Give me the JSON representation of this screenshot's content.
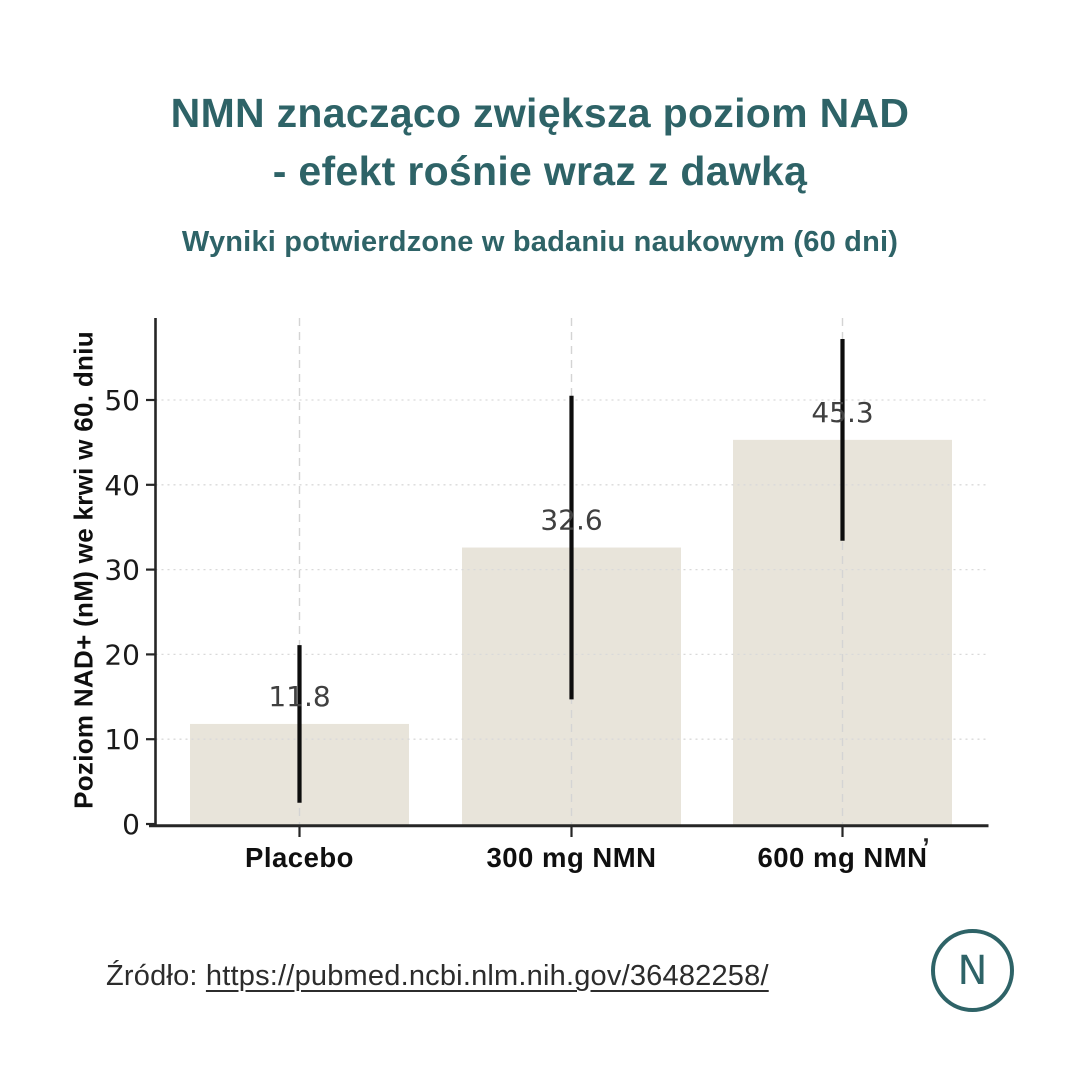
{
  "header": {
    "title_lines": [
      "NMN znacząco zwiększa poziom NAD",
      "- efekt rośnie wraz z dawką"
    ],
    "subtitle": "Wyniki potwierdzone w badaniu naukowym (60 dni)",
    "accent_color": "#2e6367"
  },
  "chart_data": {
    "type": "bar",
    "categories": [
      "Placebo",
      "300 mg NMN",
      "600 mg NMN"
    ],
    "values": [
      11.8,
      32.6,
      45.3
    ],
    "value_labels": [
      "11.8",
      "32.6",
      "45.3"
    ],
    "error_bars": [
      9.3,
      17.9,
      11.9
    ],
    "title": "",
    "xlabel": "",
    "ylabel": "Poziom NAD+ (nM) we krwi w 60. dniu",
    "ylim": [
      0,
      60
    ],
    "yticks": [
      0,
      10,
      20,
      30,
      40,
      50
    ],
    "grid": true,
    "legend": false,
    "bar_color": "#e8e4da",
    "error_color": "#0d0d0d",
    "grid_color": "#d9d9d9",
    "axis_color": "#262626",
    "tick_label_color": "#1a1a1a",
    "value_label_color": "#404040",
    "stray_mark": "ʼ"
  },
  "footer": {
    "source_prefix": "Źródło: ",
    "source_url": "https://pubmed.ncbi.nlm.nih.gov/36482258/",
    "logo_letter": "N"
  }
}
